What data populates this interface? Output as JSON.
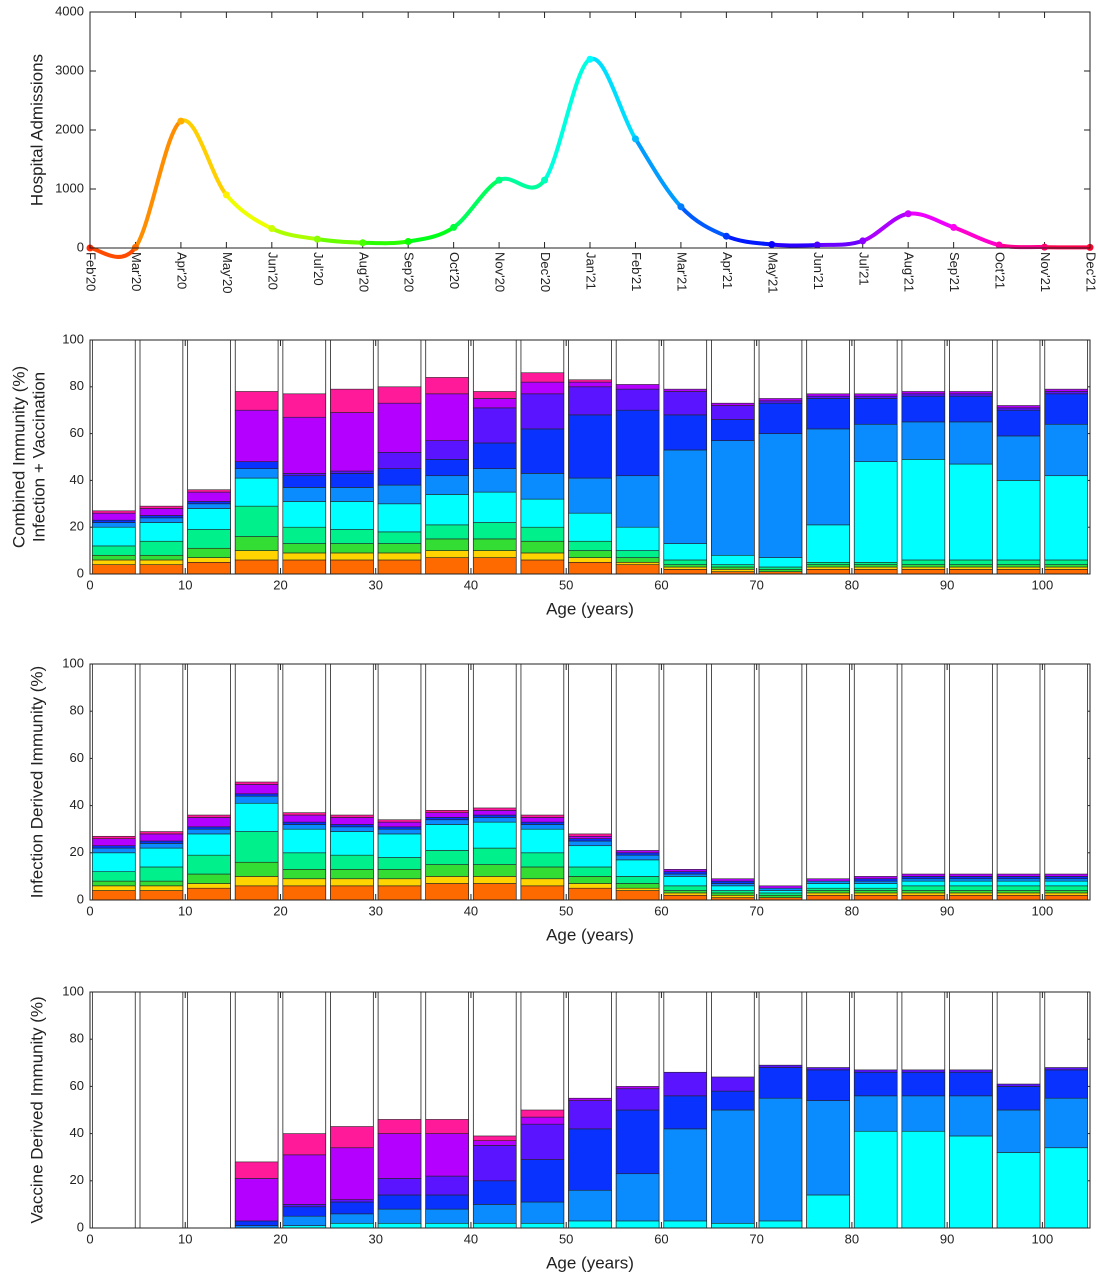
{
  "chart_data": [
    {
      "type": "line",
      "colormap": "hsv",
      "ylabel": [
        "Hospital Admissions"
      ],
      "x": [
        "2020-02",
        "2020-03",
        "2020-04",
        "2020-05",
        "2020-06",
        "2020-07",
        "2020-08",
        "2020-09",
        "2020-10",
        "2020-11",
        "2020-12",
        "2021-01",
        "2021-02",
        "2021-03",
        "2021-04",
        "2021-05",
        "2021-06",
        "2021-07",
        "2021-08",
        "2021-09",
        "2021-10",
        "2021-11",
        "2021-12"
      ],
      "values": [
        0,
        10,
        2150,
        900,
        330,
        150,
        90,
        110,
        350,
        1150,
        1150,
        3200,
        1850,
        700,
        200,
        60,
        50,
        120,
        580,
        350,
        50,
        15,
        10
      ],
      "xlim": [
        "2020-02",
        "2021-12"
      ],
      "xticks": [
        {
          "value": "2020-02",
          "label": "Feb'20"
        },
        {
          "value": "2020-03",
          "label": "Mar'20"
        },
        {
          "value": "2020-04",
          "label": "Apr'20"
        },
        {
          "value": "2020-05",
          "label": "May'20"
        },
        {
          "value": "2020-06",
          "label": "Jun'20"
        },
        {
          "value": "2020-07",
          "label": "Jul'20"
        },
        {
          "value": "2020-08",
          "label": "Aug'20"
        },
        {
          "value": "2020-09",
          "label": "Sep'20"
        },
        {
          "value": "2020-10",
          "label": "Oct'20"
        },
        {
          "value": "2020-11",
          "label": "Nov'20"
        },
        {
          "value": "2020-12",
          "label": "Dec'20"
        },
        {
          "value": "2021-01",
          "label": "Jan'21"
        },
        {
          "value": "2021-02",
          "label": "Feb'21"
        },
        {
          "value": "2021-03",
          "label": "Mar'21"
        },
        {
          "value": "2021-04",
          "label": "Apr'21"
        },
        {
          "value": "2021-05",
          "label": "May'21"
        },
        {
          "value": "2021-06",
          "label": "Jun'21"
        },
        {
          "value": "2021-07",
          "label": "Jul'21"
        },
        {
          "value": "2021-08",
          "label": "Aug'21"
        },
        {
          "value": "2021-09",
          "label": "Sep'21"
        },
        {
          "value": "2021-10",
          "label": "Oct'21"
        },
        {
          "value": "2021-11",
          "label": "Nov'21"
        },
        {
          "value": "2021-12",
          "label": "Dec'21"
        }
      ],
      "ylim": [
        0,
        4000
      ],
      "yticks": [
        0,
        1000,
        2000,
        3000,
        4000
      ]
    },
    {
      "type": "stacked-bar",
      "ylabel": [
        "Combined Immunity (%)",
        "Infection + Vaccination"
      ],
      "xlabel": "Age (years)",
      "x": [
        2.5,
        7.5,
        12.5,
        17.5,
        22.5,
        27.5,
        32.5,
        37.5,
        42.5,
        47.5,
        52.5,
        57.5,
        62.5,
        67.5,
        72.5,
        77.5,
        82.5,
        87.5,
        92.5,
        97.5,
        102.5
      ],
      "xlim": [
        0,
        105
      ],
      "xticks": [
        0,
        10,
        20,
        30,
        40,
        50,
        60,
        70,
        80,
        90,
        100
      ],
      "ylim": [
        0,
        100
      ],
      "yticks": [
        0,
        20,
        40,
        60,
        80,
        100
      ],
      "series": [
        {
          "color": "#ff6a00",
          "values": [
            4,
            4,
            5,
            6,
            6,
            6,
            6,
            7,
            7,
            6,
            5,
            4,
            2,
            1,
            1,
            2,
            2,
            2,
            2,
            2,
            2
          ]
        },
        {
          "color": "#ffd400",
          "values": [
            2,
            2,
            2,
            4,
            3,
            3,
            3,
            3,
            3,
            3,
            2,
            1,
            1,
            1,
            0,
            1,
            1,
            1,
            1,
            1,
            1
          ]
        },
        {
          "color": "#33dd33",
          "values": [
            2,
            2,
            4,
            6,
            4,
            4,
            4,
            5,
            5,
            5,
            3,
            2,
            1,
            1,
            1,
            1,
            1,
            1,
            1,
            1,
            1
          ]
        },
        {
          "color": "#00f08c",
          "values": [
            4,
            6,
            8,
            13,
            7,
            6,
            5,
            6,
            7,
            6,
            4,
            3,
            2,
            1,
            1,
            1,
            1,
            2,
            2,
            2,
            2
          ]
        },
        {
          "color": "#00ffff",
          "values": [
            8,
            8,
            9,
            12,
            11,
            12,
            12,
            13,
            13,
            12,
            12,
            10,
            7,
            4,
            4,
            16,
            43,
            43,
            41,
            34,
            36
          ]
        },
        {
          "color": "#0a8cff",
          "values": [
            2,
            2,
            2,
            4,
            6,
            6,
            8,
            8,
            10,
            11,
            15,
            22,
            40,
            49,
            53,
            41,
            16,
            16,
            18,
            19,
            22
          ]
        },
        {
          "color": "#0a32ff",
          "values": [
            1,
            1,
            1,
            3,
            5,
            6,
            7,
            7,
            11,
            19,
            27,
            28,
            15,
            9,
            13,
            13,
            11,
            11,
            11,
            11,
            13
          ]
        },
        {
          "color": "#5a14ff",
          "values": [
            0,
            0,
            0,
            0,
            1,
            1,
            7,
            8,
            15,
            15,
            12,
            9,
            10,
            6,
            1,
            1,
            1,
            1,
            1,
            1,
            1
          ]
        },
        {
          "color": "#b400ff",
          "values": [
            3,
            3,
            4,
            22,
            24,
            25,
            21,
            20,
            4,
            5,
            2,
            2,
            1,
            1,
            1,
            1,
            1,
            1,
            1,
            1,
            1
          ]
        },
        {
          "color": "#ff1a9a",
          "values": [
            1,
            1,
            1,
            8,
            10,
            10,
            7,
            7,
            3,
            4,
            1,
            0,
            0,
            0,
            0,
            0,
            0,
            0,
            0,
            0,
            0
          ]
        }
      ]
    },
    {
      "type": "stacked-bar",
      "ylabel": [
        "Infection Derived Immunity (%)"
      ],
      "xlabel": "Age (years)",
      "x": [
        2.5,
        7.5,
        12.5,
        17.5,
        22.5,
        27.5,
        32.5,
        37.5,
        42.5,
        47.5,
        52.5,
        57.5,
        62.5,
        67.5,
        72.5,
        77.5,
        82.5,
        87.5,
        92.5,
        97.5,
        102.5
      ],
      "xlim": [
        0,
        105
      ],
      "xticks": [
        0,
        10,
        20,
        30,
        40,
        50,
        60,
        70,
        80,
        90,
        100
      ],
      "ylim": [
        0,
        100
      ],
      "yticks": [
        0,
        20,
        40,
        60,
        80,
        100
      ],
      "series": [
        {
          "color": "#ff6a00",
          "values": [
            4,
            4,
            5,
            6,
            6,
            6,
            6,
            7,
            7,
            6,
            5,
            4,
            2,
            1,
            1,
            2,
            2,
            2,
            2,
            2,
            2
          ]
        },
        {
          "color": "#ffd400",
          "values": [
            2,
            2,
            2,
            4,
            3,
            3,
            3,
            3,
            3,
            3,
            2,
            1,
            1,
            1,
            0,
            1,
            1,
            1,
            1,
            1,
            1
          ]
        },
        {
          "color": "#33dd33",
          "values": [
            2,
            2,
            4,
            6,
            4,
            4,
            4,
            5,
            5,
            5,
            3,
            2,
            1,
            1,
            1,
            1,
            1,
            1,
            1,
            1,
            1
          ]
        },
        {
          "color": "#00f08c",
          "values": [
            4,
            6,
            8,
            13,
            7,
            6,
            5,
            6,
            7,
            6,
            4,
            3,
            2,
            1,
            1,
            1,
            1,
            2,
            2,
            2,
            2
          ]
        },
        {
          "color": "#00ffff",
          "values": [
            8,
            8,
            9,
            12,
            10,
            10,
            10,
            11,
            11,
            10,
            9,
            7,
            4,
            2,
            1,
            2,
            2,
            2,
            2,
            2,
            2
          ]
        },
        {
          "color": "#0a8cff",
          "values": [
            2,
            2,
            2,
            3,
            2,
            2,
            2,
            2,
            2,
            2,
            2,
            2,
            1,
            1,
            1,
            1,
            1,
            1,
            1,
            1,
            1
          ]
        },
        {
          "color": "#0a32ff",
          "values": [
            1,
            1,
            1,
            1,
            1,
            1,
            1,
            1,
            1,
            1,
            1,
            1,
            1,
            1,
            0,
            0,
            1,
            1,
            1,
            1,
            1
          ]
        },
        {
          "color": "#5a14ff",
          "values": [
            0,
            0,
            0,
            0,
            0,
            0,
            0,
            0,
            0,
            0,
            0,
            0,
            0,
            0,
            0,
            0,
            0,
            0,
            0,
            0,
            0
          ]
        },
        {
          "color": "#b400ff",
          "values": [
            3,
            3,
            4,
            4,
            3,
            3,
            2,
            2,
            2,
            2,
            1,
            1,
            1,
            1,
            1,
            1,
            1,
            1,
            1,
            1,
            1
          ]
        },
        {
          "color": "#ff1a9a",
          "values": [
            1,
            1,
            1,
            1,
            1,
            1,
            1,
            1,
            1,
            1,
            1,
            0,
            0,
            0,
            0,
            0,
            0,
            0,
            0,
            0,
            0
          ]
        }
      ]
    },
    {
      "type": "stacked-bar",
      "ylabel": [
        "Vaccine Derived Immunity (%)"
      ],
      "xlabel": "Age (years)",
      "x": [
        2.5,
        7.5,
        12.5,
        17.5,
        22.5,
        27.5,
        32.5,
        37.5,
        42.5,
        47.5,
        52.5,
        57.5,
        62.5,
        67.5,
        72.5,
        77.5,
        82.5,
        87.5,
        92.5,
        97.5,
        102.5
      ],
      "xlim": [
        0,
        105
      ],
      "xticks": [
        0,
        10,
        20,
        30,
        40,
        50,
        60,
        70,
        80,
        90,
        100
      ],
      "ylim": [
        0,
        100
      ],
      "yticks": [
        0,
        20,
        40,
        60,
        80,
        100
      ],
      "series": [
        {
          "color": "#00ffff",
          "values": [
            0,
            0,
            0,
            0,
            1,
            2,
            2,
            2,
            2,
            2,
            3,
            3,
            3,
            2,
            3,
            14,
            41,
            41,
            39,
            32,
            34
          ]
        },
        {
          "color": "#0a8cff",
          "values": [
            0,
            0,
            0,
            1,
            4,
            4,
            6,
            6,
            8,
            9,
            13,
            20,
            39,
            48,
            52,
            40,
            15,
            15,
            17,
            18,
            21
          ]
        },
        {
          "color": "#0a32ff",
          "values": [
            0,
            0,
            0,
            2,
            4,
            5,
            6,
            6,
            10,
            18,
            26,
            27,
            14,
            8,
            13,
            13,
            10,
            10,
            10,
            10,
            12
          ]
        },
        {
          "color": "#5a14ff",
          "values": [
            0,
            0,
            0,
            0,
            1,
            1,
            7,
            8,
            15,
            15,
            12,
            9,
            10,
            6,
            1,
            1,
            1,
            1,
            1,
            1,
            1
          ]
        },
        {
          "color": "#b400ff",
          "values": [
            0,
            0,
            0,
            18,
            21,
            22,
            19,
            18,
            2,
            3,
            1,
            1,
            0,
            0,
            0,
            0,
            0,
            0,
            0,
            0,
            0
          ]
        },
        {
          "color": "#ff1a9a",
          "values": [
            0,
            0,
            0,
            7,
            9,
            9,
            6,
            6,
            2,
            3,
            0,
            0,
            0,
            0,
            0,
            0,
            0,
            0,
            0,
            0,
            0
          ]
        }
      ]
    }
  ]
}
